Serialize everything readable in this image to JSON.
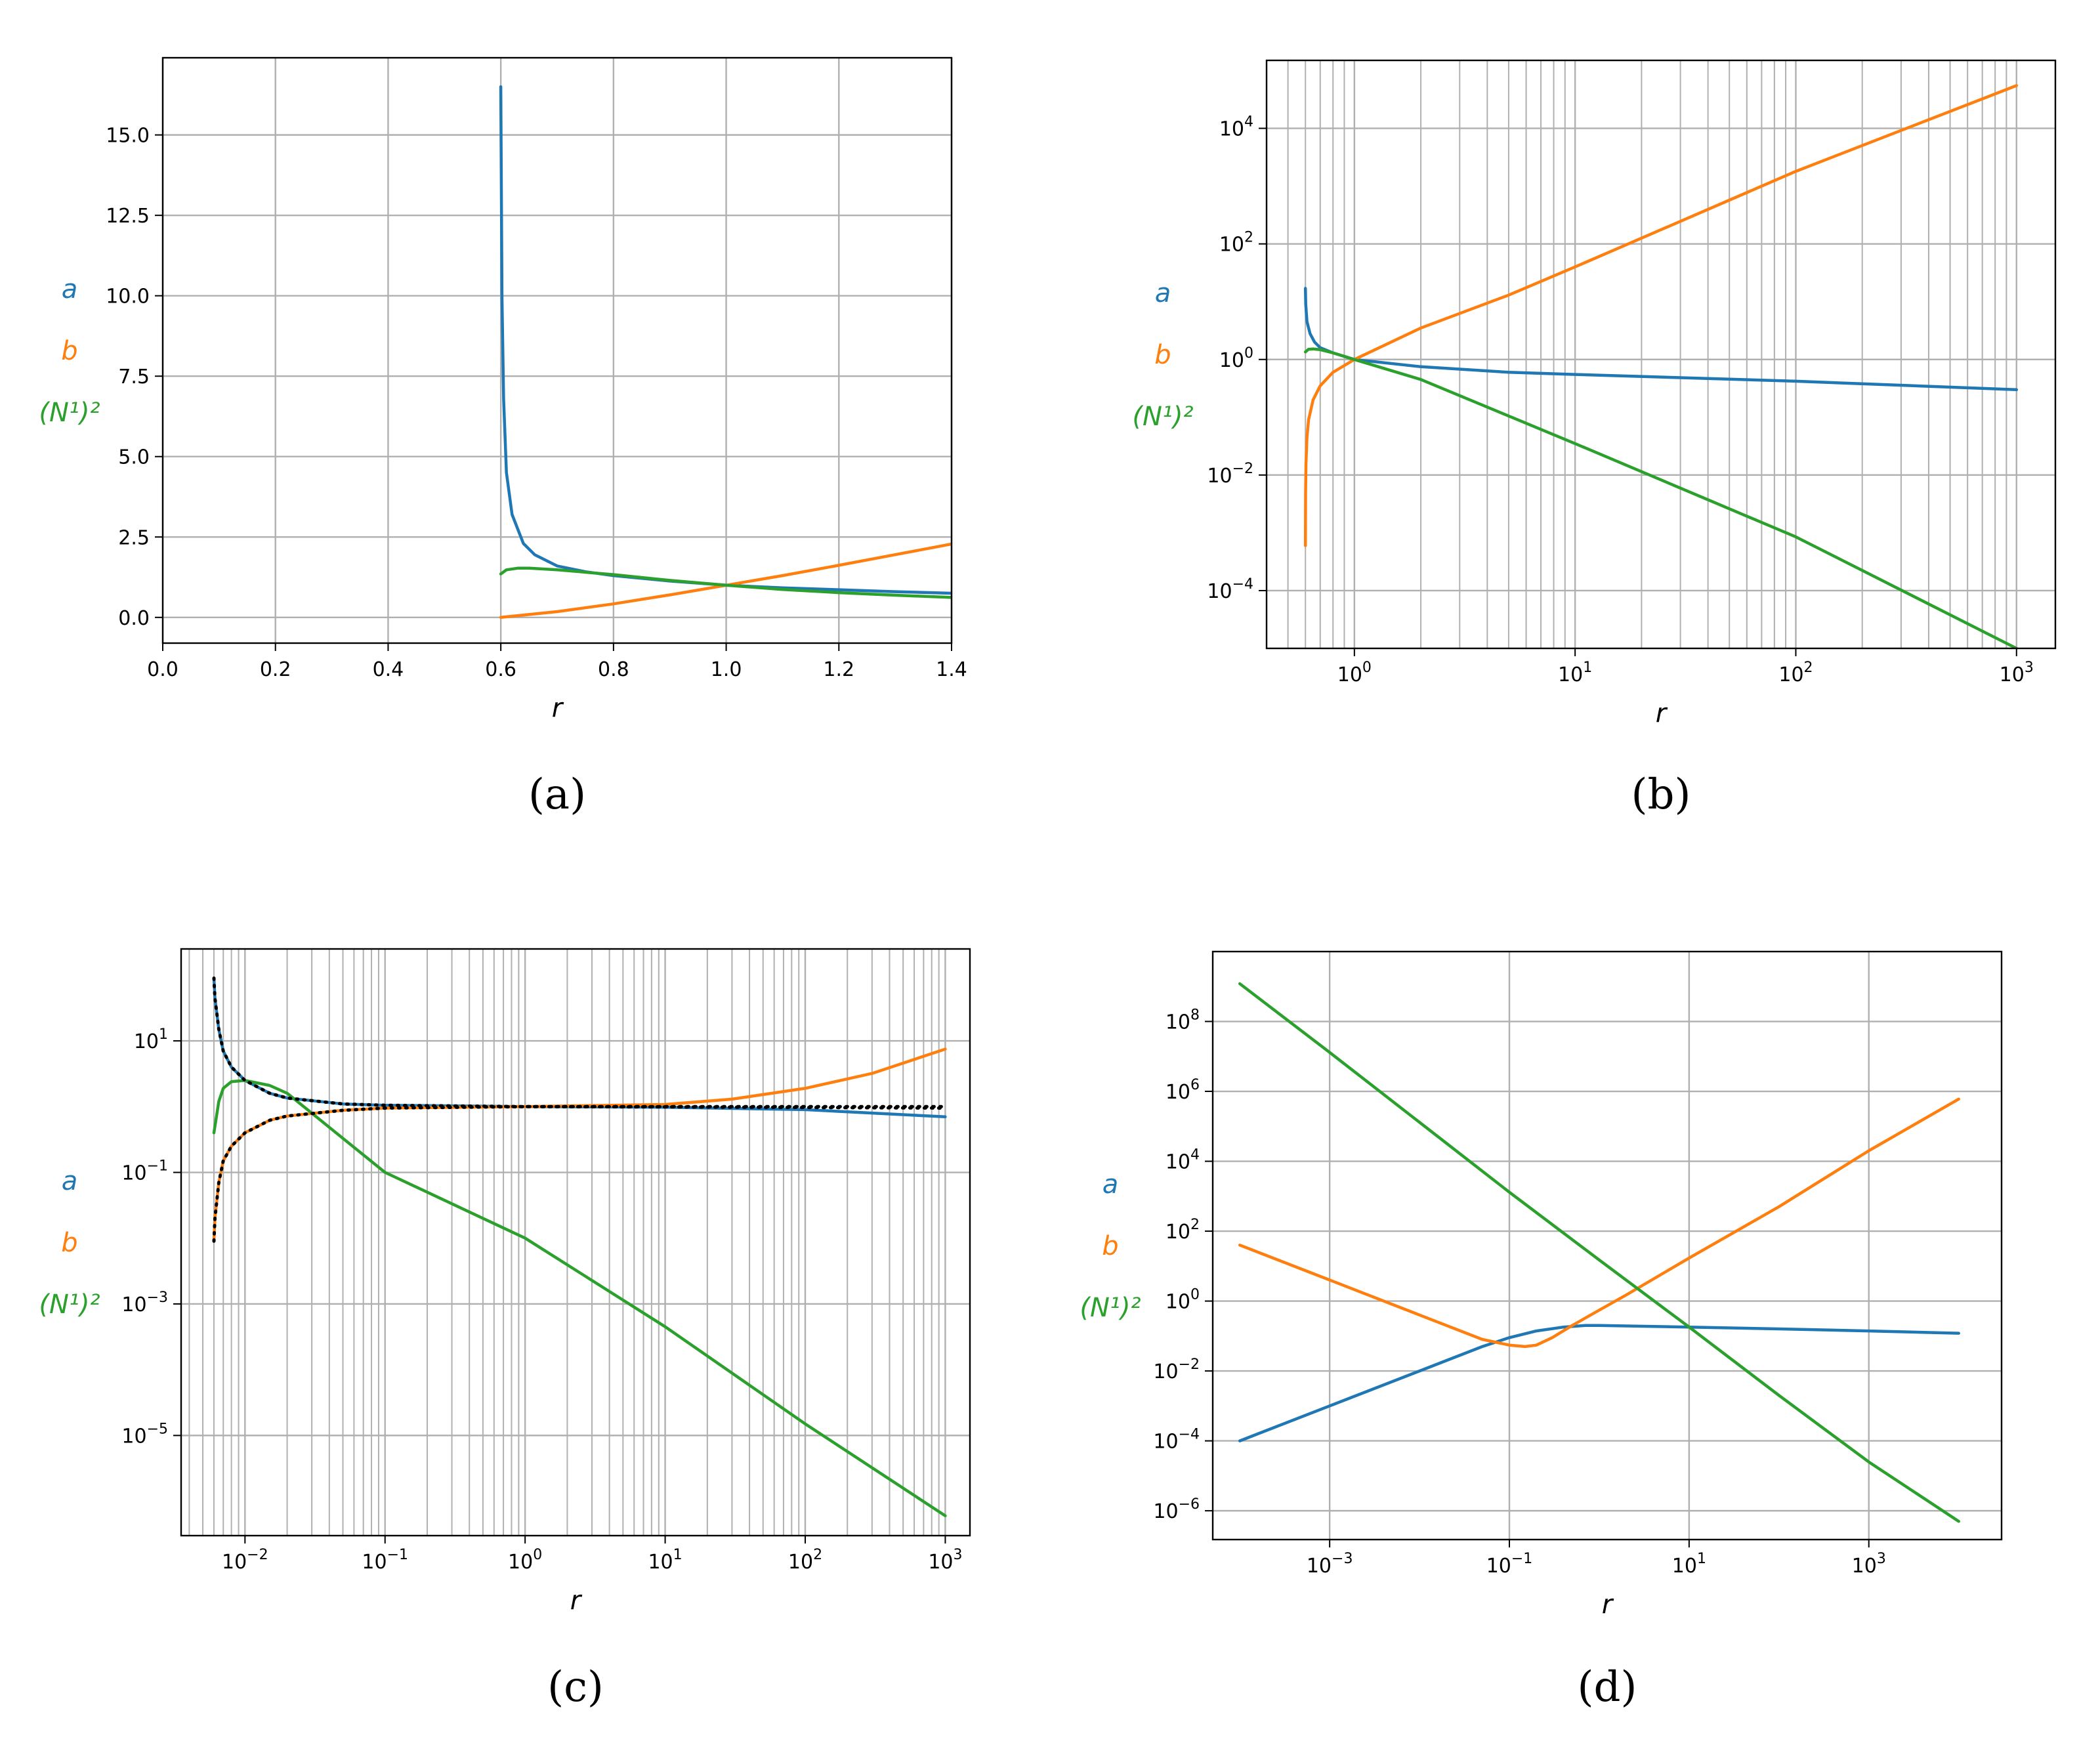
{
  "colors": {
    "a": "#1f77b4",
    "b": "#ff7f0e",
    "N": "#2ca02c",
    "ref": "#000000",
    "grid": "#b0b0b0"
  },
  "chart_data": [
    {
      "panel": "(a)",
      "type": "line",
      "xlabel": "r",
      "ylabel_lines": [
        "a",
        "b",
        "(N¹)²"
      ],
      "xscale": "linear",
      "yscale": "linear",
      "xlim": [
        0.0,
        1.4
      ],
      "ylim": [
        -0.8,
        17.4
      ],
      "xticks": [
        0.0,
        0.2,
        0.4,
        0.6,
        0.8,
        1.0,
        1.2,
        1.4
      ],
      "xtick_labels": [
        "0.0",
        "0.2",
        "0.4",
        "0.6",
        "0.8",
        "1.0",
        "1.2",
        "1.4"
      ],
      "yticks": [
        0.0,
        2.5,
        5.0,
        7.5,
        10.0,
        12.5,
        15.0
      ],
      "ytick_labels": [
        "0.0",
        "2.5",
        "5.0",
        "7.5",
        "10.0",
        "12.5",
        "15.0"
      ],
      "grid": true,
      "minor_grid": false,
      "series": [
        {
          "name": "a",
          "color_key": "a",
          "x": [
            0.6,
            0.602,
            0.605,
            0.61,
            0.62,
            0.64,
            0.66,
            0.7,
            0.75,
            0.8,
            0.9,
            1.0,
            1.1,
            1.2,
            1.3,
            1.4
          ],
          "y": [
            16.5,
            10.0,
            6.8,
            4.5,
            3.2,
            2.3,
            1.95,
            1.6,
            1.42,
            1.3,
            1.13,
            1.0,
            0.92,
            0.86,
            0.8,
            0.75
          ]
        },
        {
          "name": "b",
          "color_key": "b",
          "x": [
            0.6,
            0.7,
            0.8,
            0.9,
            1.0,
            1.1,
            1.2,
            1.3,
            1.4
          ],
          "y": [
            0.0,
            0.18,
            0.42,
            0.7,
            1.0,
            1.3,
            1.62,
            1.95,
            2.28
          ]
        },
        {
          "name": "(N¹)²",
          "color_key": "N",
          "x": [
            0.6,
            0.61,
            0.63,
            0.65,
            0.7,
            0.8,
            0.9,
            1.0,
            1.1,
            1.2,
            1.3,
            1.4
          ],
          "y": [
            1.35,
            1.48,
            1.53,
            1.53,
            1.48,
            1.33,
            1.15,
            1.0,
            0.87,
            0.77,
            0.69,
            0.62
          ]
        }
      ]
    },
    {
      "panel": "(b)",
      "type": "line",
      "xlabel": "r",
      "ylabel_lines": [
        "a",
        "b",
        "(N¹)²"
      ],
      "xscale": "log",
      "yscale": "log",
      "xlim": [
        0.4,
        1500
      ],
      "ylim": [
        1e-05,
        150000.0
      ],
      "xticks": [
        1,
        10,
        100,
        1000
      ],
      "xtick_labels": [
        [
          "10",
          "0"
        ],
        [
          "10",
          "1"
        ],
        [
          "10",
          "2"
        ],
        [
          "10",
          "3"
        ]
      ],
      "yticks": [
        0.0001,
        0.01,
        1,
        100,
        10000
      ],
      "ytick_labels": [
        [
          "10",
          "−4"
        ],
        [
          "10",
          "−2"
        ],
        [
          "10",
          "0"
        ],
        [
          "10",
          "2"
        ],
        [
          "10",
          "4"
        ]
      ],
      "grid": true,
      "minor_grid": "x",
      "series": [
        {
          "name": "a",
          "color_key": "a",
          "x": [
            0.6,
            0.602,
            0.61,
            0.63,
            0.66,
            0.7,
            0.8,
            1.0,
            2,
            5,
            10,
            100,
            1000
          ],
          "y": [
            17,
            9.0,
            4.5,
            2.8,
            2.0,
            1.6,
            1.3,
            1.0,
            0.75,
            0.6,
            0.55,
            0.42,
            0.3
          ]
        },
        {
          "name": "b",
          "color_key": "b",
          "x": [
            0.6,
            0.601,
            0.603,
            0.61,
            0.62,
            0.65,
            0.7,
            0.8,
            1.0,
            2,
            5,
            10,
            100,
            1000
          ],
          "y": [
            0.0006,
            0.005,
            0.015,
            0.045,
            0.09,
            0.2,
            0.35,
            0.6,
            1.0,
            3.5,
            13,
            40,
            1800,
            55000
          ]
        },
        {
          "name": "(N¹)²",
          "color_key": "N",
          "x": [
            0.6,
            0.62,
            0.65,
            0.7,
            0.8,
            1.0,
            2,
            10,
            100,
            1000
          ],
          "y": [
            1.35,
            1.5,
            1.52,
            1.48,
            1.3,
            1.0,
            0.45,
            0.035,
            0.00085,
            1e-05
          ]
        }
      ]
    },
    {
      "panel": "(c)",
      "type": "line",
      "xlabel": "r",
      "ylabel_lines": [
        "a",
        "b",
        "(N¹)²"
      ],
      "xscale": "log",
      "yscale": "log",
      "xlim": [
        0.0035,
        1500
      ],
      "ylim": [
        3e-07,
        250
      ],
      "xticks": [
        0.01,
        0.1,
        1,
        10,
        100,
        1000
      ],
      "xtick_labels": [
        [
          "10",
          "−2"
        ],
        [
          "10",
          "−1"
        ],
        [
          "10",
          "0"
        ],
        [
          "10",
          "1"
        ],
        [
          "10",
          "2"
        ],
        [
          "10",
          "3"
        ]
      ],
      "yticks": [
        1e-05,
        0.001,
        0.1,
        10
      ],
      "ytick_labels": [
        [
          "10",
          "−5"
        ],
        [
          "10",
          "−3"
        ],
        [
          "10",
          "−1"
        ],
        [
          "10",
          "1"
        ]
      ],
      "grid": true,
      "minor_grid": "x",
      "series": [
        {
          "name": "a",
          "color_key": "a",
          "x": [
            0.006,
            0.0061,
            0.0065,
            0.007,
            0.008,
            0.01,
            0.015,
            0.02,
            0.05,
            0.1,
            1,
            10,
            100,
            1000
          ],
          "y": [
            90,
            45,
            15,
            7,
            4,
            2.5,
            1.6,
            1.35,
            1.1,
            1.05,
            1.0,
            0.98,
            0.9,
            0.7
          ]
        },
        {
          "name": "b",
          "color_key": "b",
          "x": [
            0.006,
            0.0061,
            0.0065,
            0.007,
            0.008,
            0.01,
            0.015,
            0.02,
            0.05,
            0.1,
            1,
            10,
            30,
            100,
            300,
            1000
          ],
          "y": [
            0.009,
            0.02,
            0.07,
            0.15,
            0.25,
            0.4,
            0.62,
            0.72,
            0.88,
            0.95,
            1.0,
            1.08,
            1.3,
            1.9,
            3.2,
            7.5
          ]
        },
        {
          "name": "(N¹)²",
          "color_key": "N",
          "x": [
            0.006,
            0.0065,
            0.007,
            0.008,
            0.01,
            0.015,
            0.02,
            0.1,
            1,
            10,
            100,
            1000
          ],
          "y": [
            0.4,
            1.2,
            1.9,
            2.4,
            2.5,
            2.1,
            1.6,
            0.1,
            0.01,
            0.00045,
            1.5e-05,
            6e-07
          ]
        },
        {
          "name": "",
          "color_key": "ref",
          "dashed": true,
          "x": [
            0.006,
            0.0061,
            0.0065,
            0.007,
            0.008,
            0.01,
            0.015,
            0.02,
            0.05,
            0.1,
            1,
            10,
            100,
            1000
          ],
          "y": [
            90,
            45,
            15,
            7,
            4,
            2.5,
            1.6,
            1.35,
            1.1,
            1.05,
            1.0,
            0.99,
            0.97,
            0.95
          ]
        },
        {
          "name": "",
          "color_key": "ref",
          "dashed": true,
          "x": [
            0.006,
            0.0061,
            0.0065,
            0.007,
            0.008,
            0.01,
            0.015,
            0.02,
            0.05,
            0.1,
            1,
            10,
            100,
            1000
          ],
          "y": [
            0.009,
            0.02,
            0.07,
            0.15,
            0.25,
            0.4,
            0.62,
            0.72,
            0.88,
            0.95,
            1.0,
            1.0,
            1.0,
            1.0
          ]
        }
      ]
    },
    {
      "panel": "(d)",
      "type": "line",
      "xlabel": "r",
      "ylabel_lines": [
        "a",
        "b",
        "(N¹)²"
      ],
      "xscale": "log",
      "yscale": "log",
      "xlim": [
        5e-05,
        30000
      ],
      "ylim": [
        1.5e-07,
        10000000000.0
      ],
      "xticks": [
        0.001,
        0.1,
        10,
        1000
      ],
      "xtick_labels": [
        [
          "10",
          "−3"
        ],
        [
          "10",
          "−1"
        ],
        [
          "10",
          "1"
        ],
        [
          "10",
          "3"
        ]
      ],
      "yticks": [
        1e-06,
        0.0001,
        0.01,
        1,
        100,
        10000,
        1000000.0,
        100000000.0
      ],
      "ytick_labels": [
        [
          "10",
          "−6"
        ],
        [
          "10",
          "−4"
        ],
        [
          "10",
          "−2"
        ],
        [
          "10",
          "0"
        ],
        [
          "10",
          "2"
        ],
        [
          "10",
          "4"
        ],
        [
          "10",
          "6"
        ],
        [
          "10",
          "8"
        ]
      ],
      "grid": true,
      "minor_grid": false,
      "series": [
        {
          "name": "a",
          "color_key": "a",
          "x": [
            0.0001,
            0.001,
            0.01,
            0.05,
            0.1,
            0.2,
            0.4,
            0.7,
            1,
            10,
            100,
            1000,
            10000
          ],
          "y": [
            0.0001,
            0.001,
            0.01,
            0.05,
            0.09,
            0.14,
            0.18,
            0.2,
            0.2,
            0.18,
            0.16,
            0.14,
            0.12
          ]
        },
        {
          "name": "b",
          "color_key": "b",
          "x": [
            0.0001,
            0.001,
            0.01,
            0.05,
            0.1,
            0.15,
            0.2,
            0.3,
            0.5,
            1,
            2,
            10,
            100,
            1000,
            10000
          ],
          "y": [
            40,
            4,
            0.4,
            0.08,
            0.055,
            0.05,
            0.055,
            0.09,
            0.2,
            0.55,
            1.5,
            17,
            500,
            20000,
            600000
          ]
        },
        {
          "name": "(N¹)²",
          "color_key": "N",
          "x": [
            0.0001,
            0.001,
            0.01,
            0.1,
            1,
            10,
            100,
            1000,
            10000
          ],
          "y": [
            1200000000.0,
            13000000.0,
            130000.0,
            1300,
            15,
            0.18,
            0.002,
            2.5e-05,
            5e-07
          ]
        }
      ]
    }
  ]
}
